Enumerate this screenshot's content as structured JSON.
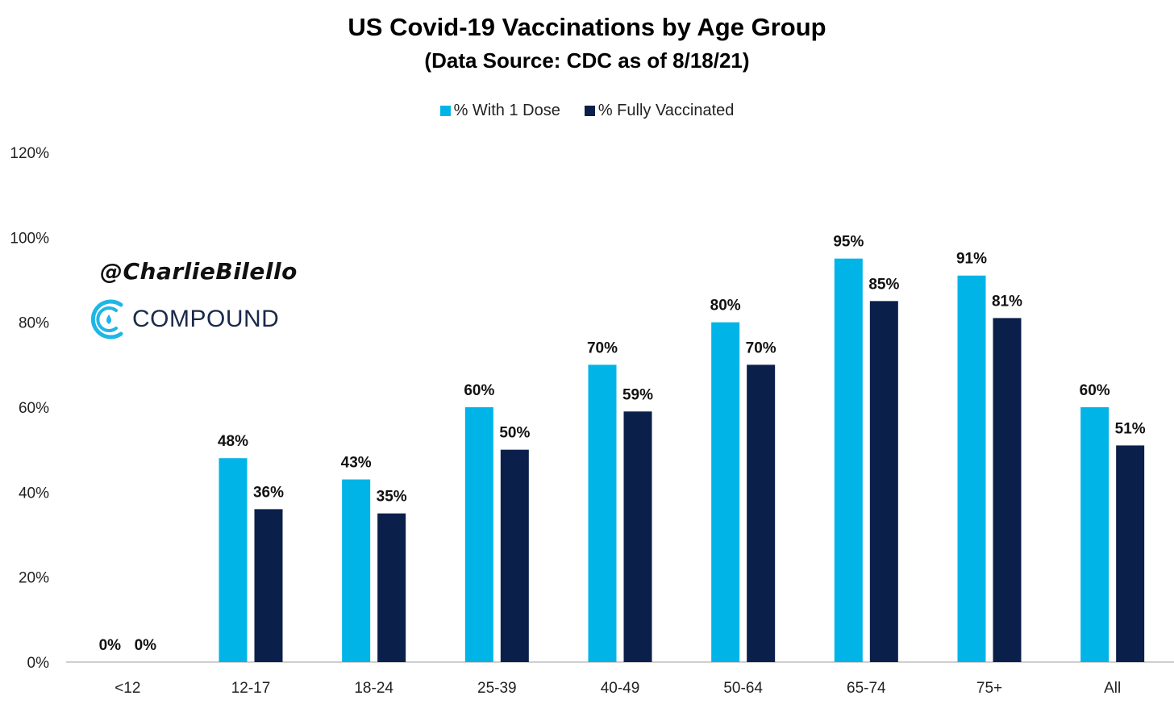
{
  "chart_data": {
    "type": "bar",
    "title": "US Covid-19 Vaccinations by Age Group",
    "subtitle": "(Data Source: CDC as of 8/18/21)",
    "categories": [
      "<12",
      "12-17",
      "18-24",
      "25-39",
      "40-49",
      "50-64",
      "65-74",
      "75+",
      "All"
    ],
    "series": [
      {
        "name": "% With 1 Dose",
        "color": "#00b4e8",
        "values": [
          0,
          48,
          43,
          60,
          70,
          80,
          95,
          91,
          60
        ]
      },
      {
        "name": "% Fully Vaccinated",
        "color": "#0b1f4b",
        "values": [
          0,
          36,
          35,
          50,
          59,
          70,
          85,
          81,
          51
        ]
      }
    ],
    "data_labels": [
      [
        "0%",
        "48%",
        "43%",
        "60%",
        "70%",
        "80%",
        "95%",
        "91%",
        "60%"
      ],
      [
        "0%",
        "36%",
        "35%",
        "50%",
        "59%",
        "70%",
        "85%",
        "81%",
        "51%"
      ]
    ],
    "ylim": [
      0,
      120
    ],
    "yticks": [
      0,
      20,
      40,
      60,
      80,
      100,
      120
    ],
    "ytick_labels": [
      "0%",
      "20%",
      "40%",
      "60%",
      "80%",
      "100%",
      "120%"
    ],
    "xlabel": "",
    "ylabel": "",
    "grid": false,
    "legend_position": "top-center"
  },
  "watermark": {
    "handle": "@CharlieBilello",
    "brand": "COMPOUND",
    "icon": "compound-logo-icon"
  }
}
